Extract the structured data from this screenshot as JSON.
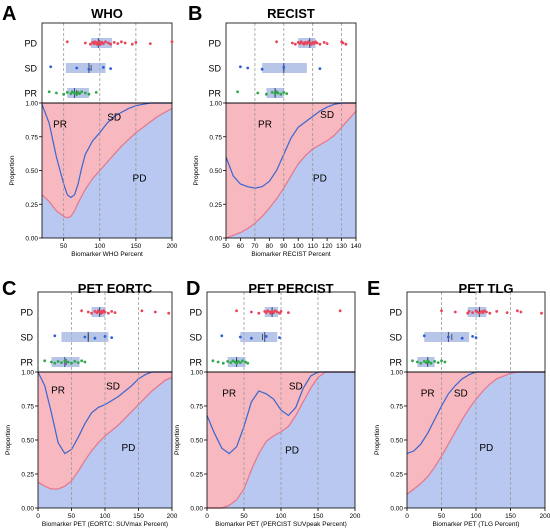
{
  "figure": {
    "colors": {
      "PD": "#f7b8bf",
      "SD": "#b8c8f0",
      "PR": "#9fdcad",
      "PD_dot": "#e8455a",
      "SD_dot": "#2f5fd6",
      "PR_dot": "#2fa84a",
      "box": "#9fb2e0",
      "curve_blue": "#3a66d0",
      "curve_red": "#e7758a",
      "frame": "#000000",
      "grid": "#999999"
    },
    "y_ticks": [
      "0.00",
      "0.25",
      "0.50",
      "0.75",
      "1.00"
    ],
    "y_label": "Proportion"
  },
  "chart_data": [
    {
      "panel": "A",
      "title": "WHO",
      "type": "area",
      "xlabel": "Biomarker WHO Percent",
      "xlim": [
        20,
        200
      ],
      "xticks": [
        50,
        100,
        150,
        200
      ],
      "vlines": [
        50,
        100,
        150
      ],
      "ylim": [
        0,
        1
      ],
      "region_labels": {
        "PR": [
          45,
          0.85
        ],
        "SD": [
          120,
          0.9
        ],
        "PD": [
          155,
          0.45
        ]
      },
      "boundary_blue": {
        "x": [
          20,
          30,
          40,
          50,
          55,
          60,
          65,
          70,
          75,
          80,
          90,
          100,
          110,
          120,
          130,
          140,
          150,
          160,
          170,
          180,
          200
        ],
        "y": [
          0.99,
          0.85,
          0.6,
          0.4,
          0.32,
          0.3,
          0.32,
          0.4,
          0.52,
          0.62,
          0.72,
          0.78,
          0.85,
          0.9,
          0.93,
          0.96,
          0.98,
          0.99,
          1.0,
          1.0,
          1.0
        ]
      },
      "boundary_red": {
        "x": [
          20,
          30,
          40,
          50,
          55,
          60,
          65,
          70,
          80,
          90,
          100,
          110,
          120,
          130,
          140,
          150,
          160,
          170,
          180,
          190,
          200
        ],
        "y": [
          0.32,
          0.27,
          0.2,
          0.16,
          0.15,
          0.16,
          0.2,
          0.26,
          0.36,
          0.44,
          0.5,
          0.56,
          0.62,
          0.68,
          0.73,
          0.78,
          0.82,
          0.86,
          0.9,
          0.93,
          0.96
        ]
      },
      "groups": [
        {
          "name": "PD",
          "points": [
            55,
            80,
            87,
            90,
            92,
            93,
            95,
            96,
            97,
            98,
            99,
            100,
            101,
            103,
            105,
            108,
            112,
            115,
            120,
            125,
            130,
            135,
            145,
            150,
            170,
            200
          ],
          "q1": 88,
          "median": 98,
          "q3": 117,
          "mean": 100
        },
        {
          "name": "SD",
          "points": [
            32,
            68,
            85,
            105,
            115
          ],
          "q1": 53,
          "median": 85,
          "q3": 108,
          "mean": 88
        },
        {
          "name": "PR",
          "points": [
            30,
            40,
            50,
            55,
            60,
            62,
            65,
            68,
            70,
            72,
            75,
            80,
            85,
            95
          ],
          "q1": 55,
          "median": 65,
          "q3": 85,
          "mean": 68
        }
      ]
    },
    {
      "panel": "B",
      "title": "RECIST",
      "type": "area",
      "xlabel": "Biomarker RECIST Percent",
      "xlim": [
        50,
        140
      ],
      "xticks": [
        50,
        60,
        70,
        80,
        90,
        100,
        110,
        120,
        130,
        140
      ],
      "vlines": [
        70,
        90,
        110,
        130
      ],
      "ylim": [
        0,
        1
      ],
      "region_labels": {
        "PR": [
          77,
          0.85
        ],
        "SD": [
          120,
          0.92
        ],
        "PD": [
          115,
          0.45
        ]
      },
      "boundary_blue": {
        "x": [
          50,
          55,
          60,
          65,
          70,
          75,
          80,
          85,
          90,
          95,
          100,
          105,
          110,
          115,
          120,
          125,
          130,
          135,
          140
        ],
        "y": [
          0.6,
          0.46,
          0.4,
          0.38,
          0.37,
          0.38,
          0.42,
          0.5,
          0.62,
          0.74,
          0.82,
          0.86,
          0.9,
          0.94,
          0.97,
          0.99,
          1.0,
          1.0,
          1.0
        ]
      },
      "boundary_red": {
        "x": [
          50,
          55,
          60,
          65,
          70,
          75,
          80,
          85,
          90,
          95,
          100,
          105,
          110,
          115,
          120,
          125,
          130,
          135,
          140
        ],
        "y": [
          0.0,
          0.02,
          0.04,
          0.07,
          0.11,
          0.16,
          0.22,
          0.29,
          0.37,
          0.46,
          0.55,
          0.61,
          0.66,
          0.69,
          0.72,
          0.76,
          0.82,
          0.88,
          0.94
        ]
      },
      "groups": [
        {
          "name": "PD",
          "points": [
            85,
            96,
            98,
            100,
            101,
            102,
            103,
            104,
            105,
            106,
            107,
            108,
            109,
            110,
            111,
            112,
            113,
            115,
            118,
            120,
            130,
            131,
            133
          ],
          "q1": 100,
          "median": 108,
          "q3": 112,
          "mean": 108
        },
        {
          "name": "SD",
          "points": [
            60,
            65,
            75,
            90,
            115
          ],
          "q1": 75,
          "median": 90,
          "q3": 106,
          "mean": 90
        },
        {
          "name": "PR",
          "points": [
            58,
            72,
            78,
            82,
            84,
            85,
            86,
            88,
            90,
            92
          ],
          "q1": 78,
          "median": 84,
          "q3": 90,
          "mean": 84
        }
      ]
    },
    {
      "panel": "C",
      "title": "PET EORTC",
      "type": "area",
      "xlabel": "Biomarker PET (EORTC: SUVmax Percent)",
      "xlim": [
        0,
        200
      ],
      "xticks": [
        0,
        50,
        100,
        150,
        200
      ],
      "vlines": [
        50,
        100,
        150
      ],
      "ylim": [
        0,
        1
      ],
      "region_labels": {
        "PR": [
          30,
          0.87
        ],
        "SD": [
          112,
          0.9
        ],
        "PD": [
          135,
          0.45
        ]
      },
      "boundary_blue": {
        "x": [
          0,
          10,
          20,
          30,
          40,
          50,
          60,
          70,
          80,
          90,
          100,
          110,
          120,
          130,
          140,
          150,
          160,
          170,
          180,
          200
        ],
        "y": [
          1.0,
          0.9,
          0.7,
          0.48,
          0.4,
          0.43,
          0.52,
          0.62,
          0.7,
          0.74,
          0.76,
          0.79,
          0.82,
          0.86,
          0.9,
          0.95,
          0.98,
          1.0,
          1.0,
          1.0
        ]
      },
      "boundary_red": {
        "x": [
          0,
          10,
          20,
          30,
          40,
          50,
          60,
          70,
          80,
          90,
          100,
          110,
          120,
          130,
          140,
          150,
          160,
          170,
          180,
          190,
          200
        ],
        "y": [
          0.19,
          0.16,
          0.14,
          0.14,
          0.16,
          0.2,
          0.27,
          0.35,
          0.42,
          0.48,
          0.53,
          0.57,
          0.61,
          0.66,
          0.71,
          0.76,
          0.81,
          0.86,
          0.9,
          0.94,
          0.96
        ]
      },
      "groups": [
        {
          "name": "PD",
          "points": [
            65,
            75,
            80,
            85,
            88,
            90,
            92,
            94,
            95,
            96,
            98,
            100,
            105,
            110,
            115,
            155,
            175,
            195
          ],
          "q1": 80,
          "median": 92,
          "q3": 100,
          "mean": 92
        },
        {
          "name": "SD",
          "points": [
            25,
            70,
            85,
            100,
            110
          ],
          "q1": 35,
          "median": 75,
          "q3": 105,
          "mean": 75
        },
        {
          "name": "PR",
          "points": [
            10,
            20,
            25,
            30,
            35,
            40,
            45,
            50,
            55,
            60,
            65,
            70
          ],
          "q1": 20,
          "median": 40,
          "q3": 62,
          "mean": 42
        }
      ]
    },
    {
      "panel": "D",
      "title": "PET PERCIST",
      "type": "area",
      "xlabel": "Biomarker PET (PERCIST SUVpeak Percent)",
      "xlim": [
        0,
        200
      ],
      "xticks": [
        0,
        50,
        100,
        150,
        200
      ],
      "vlines": [
        50,
        100,
        150
      ],
      "ylim": [
        0,
        1
      ],
      "region_labels": {
        "PR": [
          30,
          0.85
        ],
        "SD": [
          120,
          0.9
        ],
        "PD": [
          115,
          0.43
        ]
      },
      "boundary_blue": {
        "x": [
          0,
          10,
          20,
          30,
          40,
          50,
          60,
          70,
          80,
          90,
          100,
          110,
          120,
          130,
          140,
          150,
          160,
          180,
          200
        ],
        "y": [
          0.68,
          0.55,
          0.44,
          0.4,
          0.45,
          0.6,
          0.78,
          0.86,
          0.84,
          0.8,
          0.72,
          0.68,
          0.74,
          0.88,
          0.97,
          1.0,
          1.0,
          1.0,
          1.0
        ]
      },
      "boundary_red": {
        "x": [
          0,
          10,
          20,
          30,
          40,
          50,
          60,
          70,
          80,
          90,
          100,
          110,
          120,
          130,
          140,
          150,
          160,
          180,
          200
        ],
        "y": [
          0.0,
          0.0,
          0.0,
          0.02,
          0.06,
          0.14,
          0.28,
          0.4,
          0.49,
          0.53,
          0.56,
          0.6,
          0.68,
          0.78,
          0.88,
          0.96,
          1.0,
          1.0,
          1.0
        ]
      },
      "groups": [
        {
          "name": "PD",
          "points": [
            40,
            60,
            70,
            78,
            80,
            82,
            85,
            86,
            88,
            90,
            92,
            95,
            98,
            100,
            110,
            180
          ],
          "q1": 78,
          "median": 88,
          "q3": 96,
          "mean": 88
        },
        {
          "name": "SD",
          "points": [
            20,
            45,
            60,
            80,
            98
          ],
          "q1": 45,
          "median": 78,
          "q3": 95,
          "mean": 75
        },
        {
          "name": "PR",
          "points": [
            8,
            15,
            22,
            28,
            32,
            35,
            38,
            40,
            42,
            45,
            48,
            52,
            55
          ],
          "q1": 28,
          "median": 40,
          "q3": 52,
          "mean": 40
        }
      ]
    },
    {
      "panel": "E",
      "title": "PET TLG",
      "type": "area",
      "xlabel": "Biomarker PET (TLG Percent)",
      "xlim": [
        0,
        200
      ],
      "xticks": [
        0,
        50,
        100,
        150,
        200
      ],
      "vlines": [
        50,
        100,
        150
      ],
      "ylim": [
        0,
        1
      ],
      "region_labels": {
        "PR": [
          30,
          0.85
        ],
        "SD": [
          78,
          0.85
        ],
        "PD": [
          115,
          0.45
        ]
      },
      "boundary_blue": {
        "x": [
          0,
          10,
          20,
          30,
          40,
          50,
          60,
          70,
          80,
          90,
          100,
          110,
          120,
          130,
          140,
          150,
          160,
          180,
          200
        ],
        "y": [
          0.4,
          0.42,
          0.47,
          0.55,
          0.65,
          0.75,
          0.84,
          0.9,
          0.95,
          0.98,
          1.0,
          1.0,
          1.0,
          1.0,
          1.0,
          1.0,
          1.0,
          1.0,
          1.0
        ]
      },
      "boundary_red": {
        "x": [
          0,
          10,
          20,
          30,
          40,
          50,
          60,
          70,
          80,
          90,
          100,
          110,
          120,
          130,
          140,
          150,
          160,
          180,
          200
        ],
        "y": [
          0.1,
          0.14,
          0.18,
          0.23,
          0.3,
          0.38,
          0.47,
          0.56,
          0.65,
          0.73,
          0.8,
          0.86,
          0.91,
          0.95,
          0.97,
          0.99,
          1.0,
          1.0,
          1.0
        ]
      },
      "groups": [
        {
          "name": "PD",
          "points": [
            50,
            70,
            88,
            90,
            95,
            100,
            102,
            105,
            108,
            110,
            112,
            115,
            120,
            130,
            145,
            160,
            165,
            195
          ],
          "q1": 88,
          "median": 105,
          "q3": 115,
          "mean": 105
        },
        {
          "name": "SD",
          "points": [
            25,
            60,
            80,
            95,
            100
          ],
          "q1": 25,
          "median": 60,
          "q3": 90,
          "mean": 65
        },
        {
          "name": "PR",
          "points": [
            8,
            15,
            20,
            25,
            28,
            30,
            32,
            35,
            40,
            45,
            50,
            55
          ],
          "q1": 15,
          "median": 30,
          "q3": 40,
          "mean": 30
        }
      ]
    }
  ]
}
